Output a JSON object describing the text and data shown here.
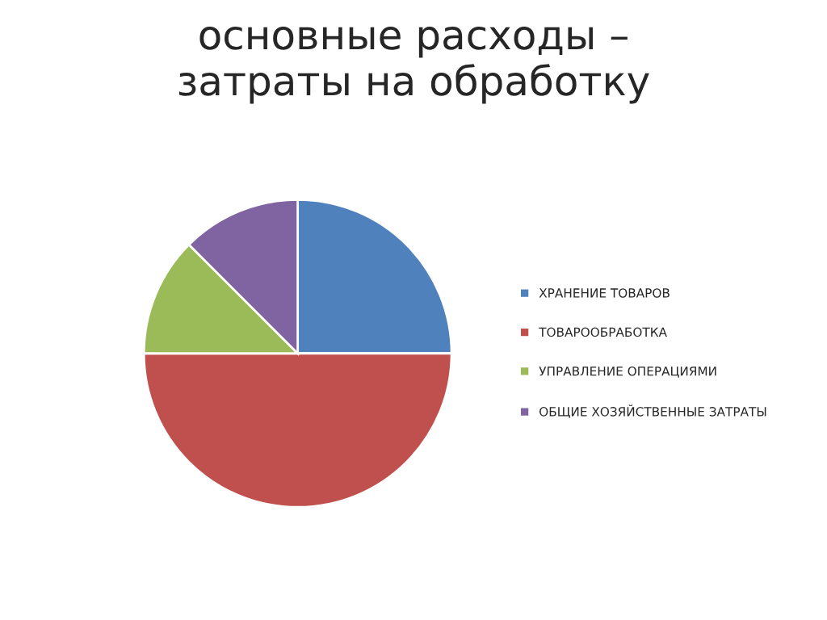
{
  "chart_data": {
    "type": "pie",
    "title": "основные расходы –\nзатраты на обработку",
    "categories": [
      "ХРАНЕНИЕ ТОВАРОВ",
      "ТОВАРООБРАБОТКА",
      "УПРАВЛЕНИЕ ОПЕРАЦИЯМИ",
      "ОБЩИЕ ХОЗЯЙСТВЕННЫЕ ЗАТРАТЫ"
    ],
    "values": [
      25,
      50,
      12.5,
      12.5
    ],
    "colors": [
      "#4f81bd",
      "#c0504d",
      "#9bbb59",
      "#8064a2"
    ],
    "legend": "right"
  }
}
